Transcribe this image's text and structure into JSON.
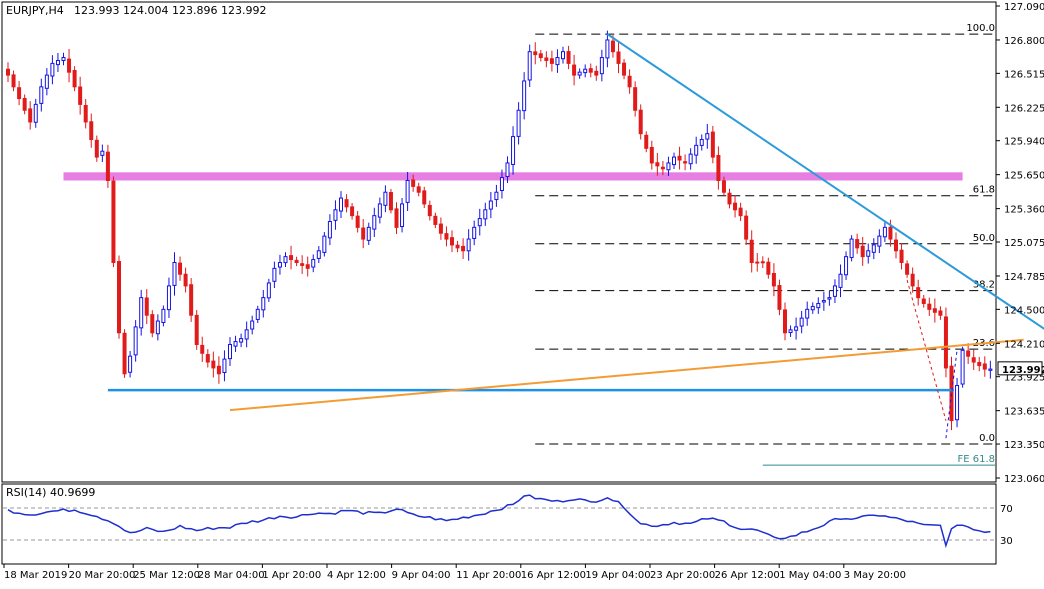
{
  "header": {
    "symbol": "EURJPY,H4",
    "ohlc": "123.993 124.004 123.896 123.992"
  },
  "chart_data": {
    "type": "candlestick",
    "title": "EURJPY,H4",
    "ylim": [
      123.06,
      127.09
    ],
    "y_ticks": [
      "127.090",
      "126.800",
      "126.515",
      "126.225",
      "125.940",
      "125.650",
      "125.360",
      "125.075",
      "124.785",
      "124.500",
      "124.210",
      "123.925",
      "123.635",
      "123.350",
      "123.060"
    ],
    "last_price": "123.992",
    "x_ticks": [
      "18 Mar 2019",
      "20 Mar 20:00",
      "25 Mar 12:00",
      "28 Mar 04:00",
      "1 Apr 20:00",
      "4 Apr 12:00",
      "9 Apr 04:00",
      "11 Apr 20:00",
      "16 Apr 12:00",
      "19 Apr 04:00",
      "23 Apr 20:00",
      "26 Apr 12:00",
      "1 May 04:00",
      "3 May 20:00"
    ],
    "anchor_closes": [
      [
        0,
        126.5
      ],
      [
        2,
        126.3
      ],
      [
        4,
        126.1
      ],
      [
        6,
        126.4
      ],
      [
        8,
        126.6
      ],
      [
        10,
        126.65
      ],
      [
        12,
        126.4
      ],
      [
        14,
        126.1
      ],
      [
        16,
        125.8
      ],
      [
        17,
        125.85
      ],
      [
        18,
        125.6
      ],
      [
        19,
        124.9
      ],
      [
        20,
        124.3
      ],
      [
        21,
        123.95
      ],
      [
        22,
        124.1
      ],
      [
        24,
        124.6
      ],
      [
        26,
        124.3
      ],
      [
        28,
        124.5
      ],
      [
        30,
        124.9
      ],
      [
        32,
        124.7
      ],
      [
        34,
        124.2
      ],
      [
        36,
        124.05
      ],
      [
        38,
        123.95
      ],
      [
        40,
        124.2
      ],
      [
        42,
        124.25
      ],
      [
        44,
        124.4
      ],
      [
        46,
        124.6
      ],
      [
        48,
        124.85
      ],
      [
        50,
        124.95
      ],
      [
        52,
        124.9
      ],
      [
        54,
        124.85
      ],
      [
        56,
        125.0
      ],
      [
        58,
        125.25
      ],
      [
        60,
        125.45
      ],
      [
        62,
        125.3
      ],
      [
        64,
        125.1
      ],
      [
        66,
        125.3
      ],
      [
        68,
        125.5
      ],
      [
        70,
        125.2
      ],
      [
        72,
        125.6
      ],
      [
        74,
        125.5
      ],
      [
        76,
        125.3
      ],
      [
        78,
        125.15
      ],
      [
        80,
        125.05
      ],
      [
        82,
        125.0
      ],
      [
        84,
        125.2
      ],
      [
        86,
        125.35
      ],
      [
        88,
        125.5
      ],
      [
        90,
        125.75
      ],
      [
        92,
        126.2
      ],
      [
        94,
        126.7
      ],
      [
        96,
        126.65
      ],
      [
        98,
        126.6
      ],
      [
        100,
        126.7
      ],
      [
        102,
        126.5
      ],
      [
        104,
        126.55
      ],
      [
        106,
        126.5
      ],
      [
        108,
        126.8
      ],
      [
        110,
        126.6
      ],
      [
        112,
        126.4
      ],
      [
        114,
        126.0
      ],
      [
        116,
        125.75
      ],
      [
        118,
        125.7
      ],
      [
        120,
        125.8
      ],
      [
        122,
        125.75
      ],
      [
        124,
        125.9
      ],
      [
        126,
        126.0
      ],
      [
        128,
        125.6
      ],
      [
        130,
        125.4
      ],
      [
        132,
        125.3
      ],
      [
        134,
        124.9
      ],
      [
        136,
        124.9
      ],
      [
        138,
        124.7
      ],
      [
        140,
        124.3
      ],
      [
        142,
        124.35
      ],
      [
        144,
        124.5
      ],
      [
        146,
        124.55
      ],
      [
        148,
        124.6
      ],
      [
        150,
        124.8
      ],
      [
        152,
        125.1
      ],
      [
        154,
        124.95
      ],
      [
        156,
        125.05
      ],
      [
        158,
        125.2
      ],
      [
        160,
        125.0
      ],
      [
        162,
        124.8
      ],
      [
        164,
        124.6
      ],
      [
        166,
        124.5
      ],
      [
        168,
        124.45
      ],
      [
        170,
        123.55
      ],
      [
        172,
        124.15
      ],
      [
        174,
        124.05
      ],
      [
        176,
        123.99
      ]
    ],
    "levels": {
      "fib": [
        {
          "label": "100.0",
          "price": 126.85
        },
        {
          "label": "61.8",
          "price": 125.47
        },
        {
          "label": "50.0",
          "price": 125.06
        },
        {
          "label": "38.2",
          "price": 124.66
        },
        {
          "label": "23.6",
          "price": 124.16
        },
        {
          "label": "0.0",
          "price": 123.35
        },
        {
          "label": "FE 61.8",
          "price": 123.17
        }
      ],
      "resistance_zone": {
        "top": 125.67,
        "bottom": 125.6,
        "color": "#e77fe3"
      },
      "support": {
        "price": 123.81,
        "color": "#1e90e8"
      },
      "trendline_down": {
        "from": [
          108,
          126.85
        ],
        "to": [
          189,
          124.26
        ],
        "color": "#2c9adb"
      },
      "trendline_up": {
        "from": [
          40,
          123.64
        ],
        "to": [
          183,
          124.24
        ],
        "color": "#f39c34"
      }
    },
    "rsi": {
      "label": "RSI(14) 40.9699",
      "ylim": [
        0,
        100
      ],
      "ticks": [
        "70",
        "30"
      ],
      "anchor_values": [
        [
          0,
          67
        ],
        [
          4,
          62
        ],
        [
          8,
          66
        ],
        [
          12,
          68
        ],
        [
          16,
          60
        ],
        [
          19,
          52
        ],
        [
          22,
          38
        ],
        [
          25,
          44
        ],
        [
          28,
          40
        ],
        [
          31,
          47
        ],
        [
          34,
          42
        ],
        [
          37,
          45
        ],
        [
          40,
          46
        ],
        [
          43,
          52
        ],
        [
          46,
          55
        ],
        [
          49,
          60
        ],
        [
          52,
          59
        ],
        [
          55,
          64
        ],
        [
          58,
          63
        ],
        [
          61,
          67
        ],
        [
          64,
          64
        ],
        [
          67,
          63
        ],
        [
          70,
          69
        ],
        [
          73,
          61
        ],
        [
          76,
          58
        ],
        [
          79,
          54
        ],
        [
          82,
          58
        ],
        [
          85,
          62
        ],
        [
          88,
          68
        ],
        [
          91,
          74
        ],
        [
          93,
          86
        ],
        [
          96,
          81
        ],
        [
          99,
          78
        ],
        [
          102,
          82
        ],
        [
          105,
          77
        ],
        [
          108,
          84
        ],
        [
          111,
          72
        ],
        [
          114,
          50
        ],
        [
          117,
          48
        ],
        [
          120,
          52
        ],
        [
          123,
          50
        ],
        [
          126,
          57
        ],
        [
          129,
          53
        ],
        [
          132,
          44
        ],
        [
          135,
          42
        ],
        [
          138,
          32
        ],
        [
          141,
          34
        ],
        [
          144,
          41
        ],
        [
          147,
          49
        ],
        [
          150,
          58
        ],
        [
          153,
          56
        ],
        [
          156,
          62
        ],
        [
          159,
          58
        ],
        [
          162,
          54
        ],
        [
          165,
          48
        ],
        [
          168,
          48
        ],
        [
          169,
          25
        ],
        [
          170,
          43
        ],
        [
          172,
          50
        ],
        [
          174,
          43
        ],
        [
          176,
          41
        ]
      ]
    },
    "colors": {
      "bull": "#1414e6",
      "bear": "#e11a1a",
      "rsi_line": "#1e2fd0",
      "grid_dash": "#000000",
      "projection": "#e11a1a"
    }
  }
}
